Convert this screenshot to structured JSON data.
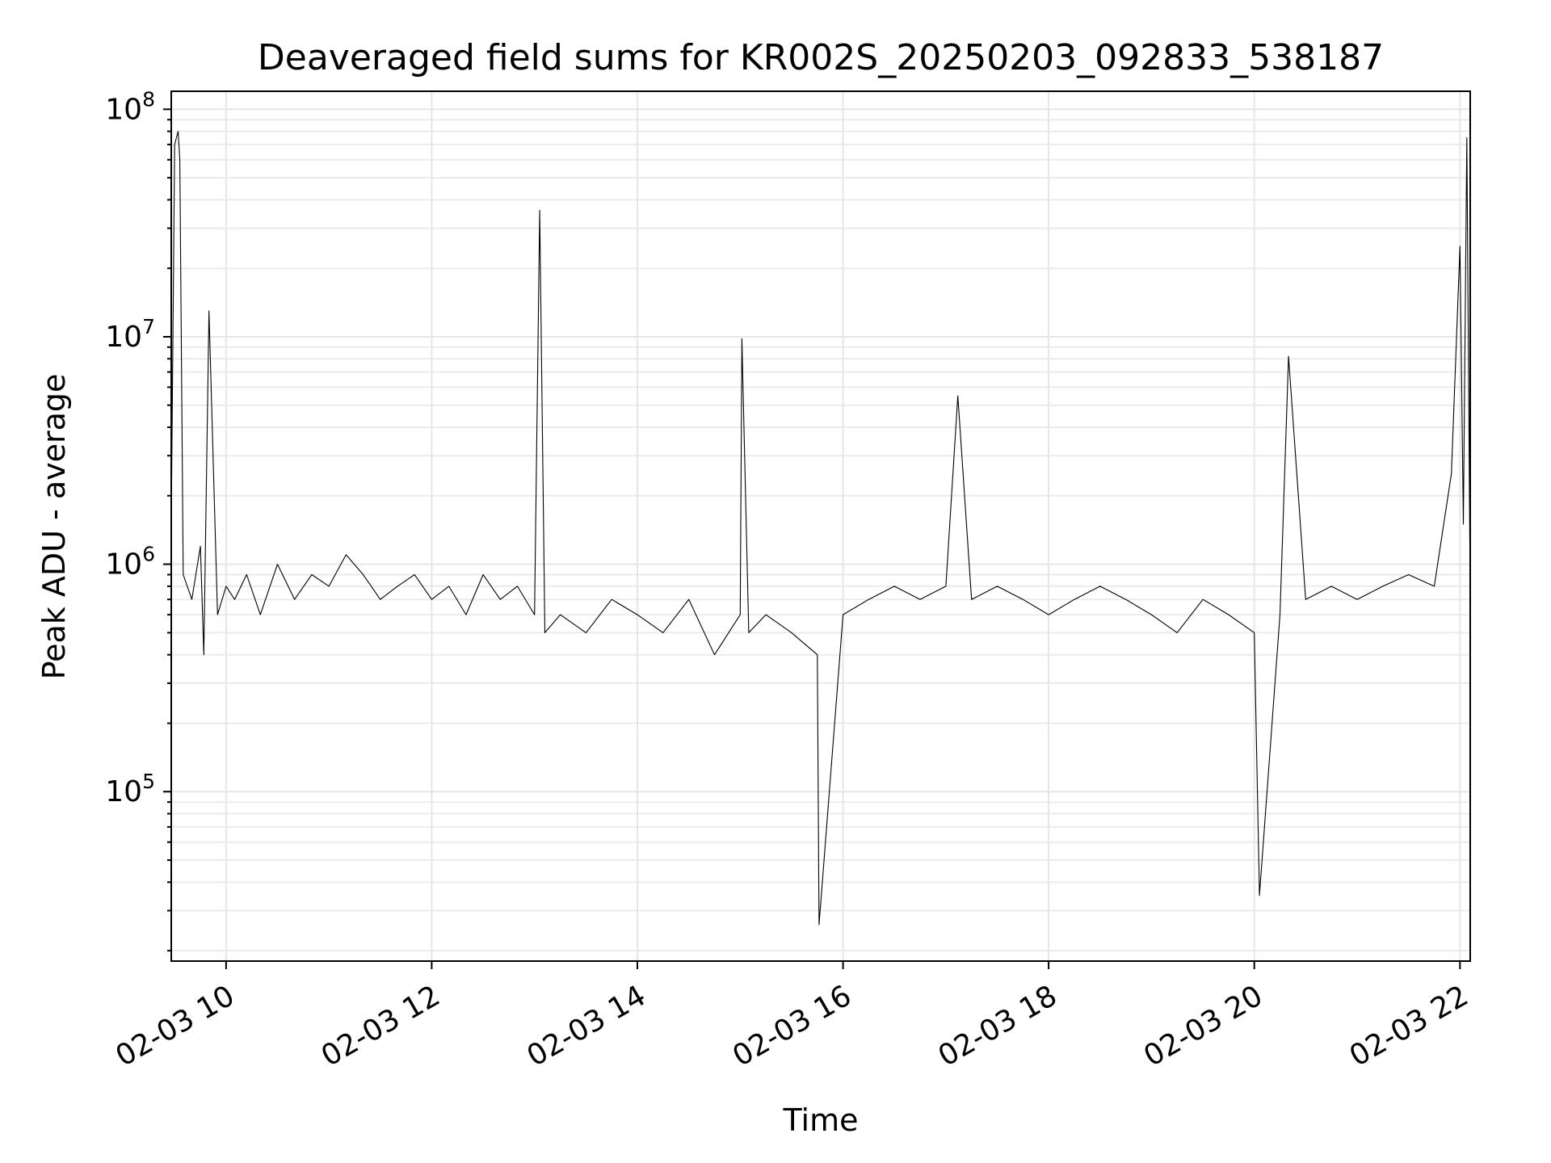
{
  "chart_data": {
    "type": "line",
    "title": "Deaveraged field sums for KR002S_20250203_092833_538187",
    "xlabel": "Time",
    "ylabel": "Peak ADU - average",
    "yscale": "log",
    "grid": "major and minor, light gray",
    "legend": "none",
    "xlim": [
      "2025-02-03 09:28",
      "2025-02-03 22:06"
    ],
    "ylim": [
      18000,
      120000000
    ],
    "x_ticks": [
      "02-03 10",
      "02-03 12",
      "02-03 14",
      "02-03 16",
      "02-03 18",
      "02-03 20",
      "02-03 22"
    ],
    "x_tick_values": [
      "2025-02-03 10:00",
      "2025-02-03 12:00",
      "2025-02-03 14:00",
      "2025-02-03 16:00",
      "2025-02-03 18:00",
      "2025-02-03 20:00",
      "2025-02-03 22:00"
    ],
    "y_ticks": [
      {
        "value": 100000,
        "base": "10",
        "exp": "5"
      },
      {
        "value": 1000000,
        "base": "10",
        "exp": "6"
      },
      {
        "value": 10000000,
        "base": "10",
        "exp": "7"
      },
      {
        "value": 100000000,
        "base": "10",
        "exp": "8"
      }
    ],
    "line_color": "#000000",
    "series": [
      {
        "x": [
          "2025-02-03 09:28",
          "2025-02-03 09:30",
          "2025-02-03 09:32",
          "2025-02-03 09:33",
          "2025-02-03 09:35",
          "2025-02-03 09:40",
          "2025-02-03 09:45",
          "2025-02-03 09:47",
          "2025-02-03 09:50",
          "2025-02-03 09:55",
          "2025-02-03 10:00",
          "2025-02-03 10:05",
          "2025-02-03 10:12",
          "2025-02-03 10:20",
          "2025-02-03 10:30",
          "2025-02-03 10:40",
          "2025-02-03 10:50",
          "2025-02-03 11:00",
          "2025-02-03 11:10",
          "2025-02-03 11:20",
          "2025-02-03 11:30",
          "2025-02-03 11:40",
          "2025-02-03 11:50",
          "2025-02-03 12:00",
          "2025-02-03 12:10",
          "2025-02-03 12:20",
          "2025-02-03 12:30",
          "2025-02-03 12:40",
          "2025-02-03 12:50",
          "2025-02-03 13:00",
          "2025-02-03 13:03",
          "2025-02-03 13:06",
          "2025-02-03 13:15",
          "2025-02-03 13:30",
          "2025-02-03 13:45",
          "2025-02-03 14:00",
          "2025-02-03 14:15",
          "2025-02-03 14:30",
          "2025-02-03 14:45",
          "2025-02-03 15:00",
          "2025-02-03 15:01",
          "2025-02-03 15:05",
          "2025-02-03 15:15",
          "2025-02-03 15:30",
          "2025-02-03 15:45",
          "2025-02-03 15:46",
          "2025-02-03 16:00",
          "2025-02-03 16:15",
          "2025-02-03 16:30",
          "2025-02-03 16:45",
          "2025-02-03 17:00",
          "2025-02-03 17:07",
          "2025-02-03 17:15",
          "2025-02-03 17:30",
          "2025-02-03 17:45",
          "2025-02-03 18:00",
          "2025-02-03 18:15",
          "2025-02-03 18:30",
          "2025-02-03 18:45",
          "2025-02-03 19:00",
          "2025-02-03 19:15",
          "2025-02-03 19:30",
          "2025-02-03 19:45",
          "2025-02-03 20:00",
          "2025-02-03 20:03",
          "2025-02-03 20:15",
          "2025-02-03 20:20",
          "2025-02-03 20:30",
          "2025-02-03 20:45",
          "2025-02-03 21:00",
          "2025-02-03 21:15",
          "2025-02-03 21:30",
          "2025-02-03 21:45",
          "2025-02-03 21:55",
          "2025-02-03 22:00",
          "2025-02-03 22:02",
          "2025-02-03 22:04",
          "2025-02-03 22:06"
        ],
        "y": [
          1500000,
          70000000,
          80000000,
          60000000,
          900000,
          700000,
          1200000,
          400000,
          13000000,
          600000,
          800000,
          700000,
          900000,
          600000,
          1000000,
          700000,
          900000,
          800000,
          1100000,
          900000,
          700000,
          800000,
          900000,
          700000,
          800000,
          600000,
          900000,
          700000,
          800000,
          600000,
          36000000,
          500000,
          600000,
          500000,
          700000,
          600000,
          500000,
          700000,
          400000,
          600000,
          9800000,
          500000,
          600000,
          500000,
          400000,
          26000,
          600000,
          700000,
          800000,
          700000,
          800000,
          5500000,
          700000,
          800000,
          700000,
          600000,
          700000,
          800000,
          700000,
          600000,
          500000,
          700000,
          600000,
          500000,
          35000,
          600000,
          8200000,
          700000,
          800000,
          700000,
          800000,
          900000,
          800000,
          2500000,
          25000000,
          1500000,
          75000000,
          700000
        ]
      }
    ]
  }
}
